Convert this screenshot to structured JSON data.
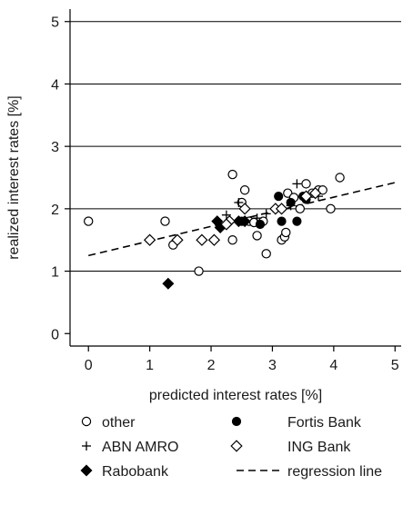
{
  "chart_data": {
    "type": "scatter",
    "xlabel": "predicted interest rates [%]",
    "ylabel": "realized interest rates [%]",
    "xlim": [
      -0.3,
      5.1
    ],
    "ylim": [
      -0.2,
      5.2
    ],
    "x_ticks": [
      "0",
      "1",
      "2",
      "3",
      "4",
      "5"
    ],
    "y_ticks": [
      "0",
      "1",
      "2",
      "3",
      "4",
      "5"
    ],
    "grid": "horizontal",
    "legend_position": "bottom",
    "series": [
      {
        "name": "other",
        "marker": "hollow-circle",
        "points": [
          [
            0.0,
            1.8
          ],
          [
            1.25,
            1.8
          ],
          [
            1.38,
            1.42
          ],
          [
            1.8,
            1.0
          ],
          [
            2.35,
            1.5
          ],
          [
            2.35,
            2.55
          ],
          [
            2.55,
            2.3
          ],
          [
            2.5,
            2.1
          ],
          [
            2.62,
            1.8
          ],
          [
            2.75,
            1.57
          ],
          [
            2.85,
            1.8
          ],
          [
            2.9,
            1.28
          ],
          [
            3.15,
            1.5
          ],
          [
            3.2,
            1.55
          ],
          [
            3.25,
            2.25
          ],
          [
            3.22,
            1.62
          ],
          [
            3.45,
            2.0
          ],
          [
            3.55,
            2.4
          ],
          [
            3.65,
            2.25
          ],
          [
            3.75,
            2.3
          ],
          [
            3.82,
            2.3
          ],
          [
            3.95,
            2.0
          ],
          [
            4.1,
            2.5
          ],
          [
            2.7,
            1.78
          ],
          [
            3.35,
            2.18
          ]
        ]
      },
      {
        "name": "ABN AMRO",
        "marker": "plus",
        "points": [
          [
            2.25,
            1.9
          ],
          [
            2.45,
            2.1
          ],
          [
            2.9,
            1.92
          ],
          [
            3.4,
            2.4
          ],
          [
            3.75,
            2.2
          ],
          [
            3.3,
            2.05
          ],
          [
            2.75,
            1.85
          ]
        ]
      },
      {
        "name": "Rabobank",
        "marker": "filled-diamond",
        "points": [
          [
            1.3,
            0.8
          ],
          [
            2.1,
            1.8
          ],
          [
            2.15,
            1.7
          ],
          [
            2.45,
            1.8
          ],
          [
            2.55,
            1.8
          ]
        ]
      },
      {
        "name": "Fortis Bank",
        "marker": "filled-circle",
        "points": [
          [
            2.5,
            1.8
          ],
          [
            2.8,
            1.75
          ],
          [
            3.1,
            2.2
          ],
          [
            3.15,
            1.8
          ],
          [
            3.3,
            2.1
          ],
          [
            3.4,
            1.8
          ],
          [
            3.5,
            2.2
          ],
          [
            3.55,
            2.15
          ]
        ]
      },
      {
        "name": "ING Bank",
        "marker": "hollow-diamond",
        "points": [
          [
            1.0,
            1.5
          ],
          [
            1.45,
            1.5
          ],
          [
            1.85,
            1.5
          ],
          [
            2.05,
            1.5
          ],
          [
            2.3,
            1.8
          ],
          [
            2.55,
            2.0
          ],
          [
            3.05,
            2.0
          ],
          [
            3.15,
            2.0
          ],
          [
            3.55,
            2.2
          ],
          [
            3.7,
            2.25
          ],
          [
            2.25,
            1.75
          ]
        ]
      }
    ],
    "regression_line": {
      "name": "regression line",
      "style": "dashed",
      "x": [
        0.0,
        5.0
      ],
      "y": [
        1.25,
        2.42
      ]
    },
    "legend": [
      "other",
      "Fortis Bank",
      "ABN AMRO",
      "ING Bank",
      "Rabobank",
      "regression line"
    ]
  }
}
